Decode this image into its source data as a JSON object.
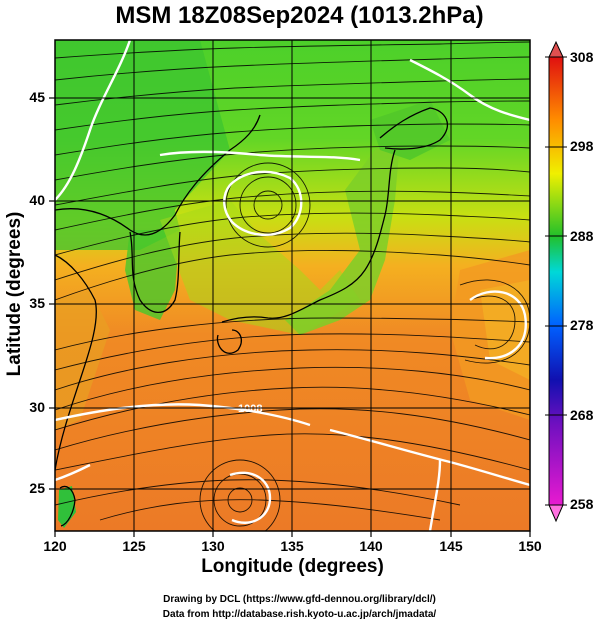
{
  "title": "MSM 18Z08Sep2024 (1013.2hPa)",
  "xlabel": "Longitude (degrees)",
  "ylabel": "Latitude  (degrees)",
  "credit1": "Drawing by DCL (https://www.gfd-dennou.org/library/dcl/)",
  "credit2": "Data from http://database.rish.kyoto-u.ac.jp/arch/jmadata/",
  "contour_label": "1008",
  "chart_data": {
    "type": "heatmap",
    "title": "MSM 18Z08Sep2024 (1013.2hPa)",
    "xlabel": "Longitude (degrees)",
    "ylabel": "Latitude  (degrees)",
    "xlim": [
      120,
      150
    ],
    "ylim": [
      22.4,
      47.6
    ],
    "xticks": [
      "120",
      "125",
      "130",
      "135",
      "140",
      "145",
      "150"
    ],
    "yticks": [
      "25",
      "30",
      "35",
      "40",
      "45"
    ],
    "colorbar": {
      "min": 258,
      "max": 308,
      "ticks": [
        "258",
        "268",
        "278",
        "288",
        "298",
        "308"
      ],
      "colors": [
        "#e81ad0",
        "#1010b0",
        "#0060ff",
        "#00d8d8",
        "#22c02a",
        "#f0f000",
        "#ff8c00",
        "#e01010"
      ]
    },
    "colors": {
      "ocean_south": "#ee7a26",
      "mid": "#f0a020",
      "land_green": "#2fc43a",
      "north": "#70d820"
    }
  }
}
